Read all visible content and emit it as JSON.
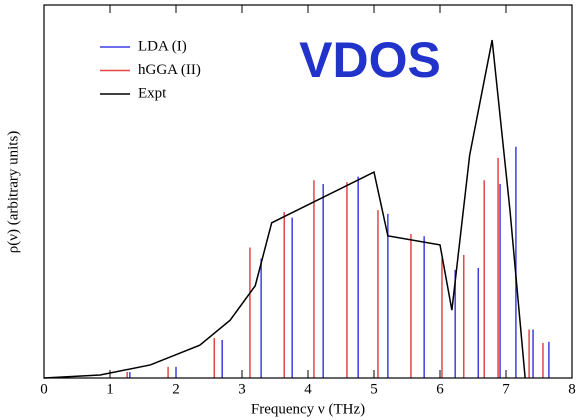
{
  "chart_data": {
    "type": "stick",
    "xlabel": "Frequency ν (THz)",
    "ylabel": "ρ(ν) (arbitrary units)",
    "annotation": "VDOS",
    "xlim": [
      0,
      8
    ],
    "xticks": [
      0,
      1,
      2,
      3,
      4,
      5,
      6,
      7,
      8
    ],
    "ylim": [
      0,
      100
    ],
    "legend": "upper left",
    "series": [
      {
        "name": "LDA (I)",
        "type": "stick",
        "color": "#3f3fe6",
        "x": [
          1.3,
          2.0,
          2.7,
          3.29,
          3.76,
          4.23,
          4.76,
          5.21,
          5.76,
          6.23,
          6.58,
          6.91,
          7.15,
          7.41,
          7.65
        ],
        "values": [
          1.6,
          3,
          10.2,
          32,
          43,
          52,
          54,
          44,
          38,
          29,
          29.5,
          52,
          62,
          13,
          9.7
        ]
      },
      {
        "name": "hGGA (II)",
        "type": "stick",
        "color": "#e64646",
        "x": [
          1.26,
          1.88,
          2.58,
          3.12,
          3.64,
          4.09,
          4.59,
          5.06,
          5.56,
          6.03,
          6.36,
          6.67,
          6.88,
          7.35,
          7.56
        ],
        "values": [
          1.6,
          3,
          10.7,
          35,
          44.5,
          53,
          52.5,
          45,
          38.6,
          32,
          33,
          53,
          59,
          13,
          9.4
        ]
      },
      {
        "name": "Expt",
        "type": "line",
        "color": "#000000",
        "x": [
          0,
          0.85,
          1.61,
          2.36,
          2.82,
          3.2,
          3.45,
          5.0,
          5.21,
          6.0,
          6.18,
          6.45,
          6.79,
          7.06,
          7.29
        ],
        "values": [
          0,
          0.8,
          3.5,
          8.8,
          15.5,
          24.7,
          41.6,
          55.2,
          38.1,
          35.7,
          18.2,
          59.8,
          90.6,
          45,
          0
        ]
      }
    ]
  }
}
